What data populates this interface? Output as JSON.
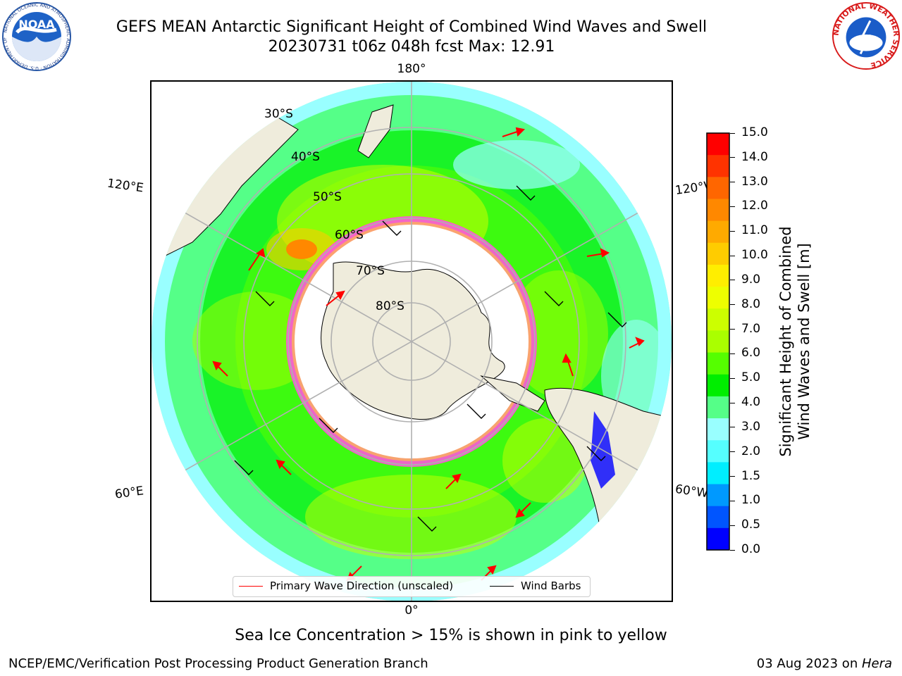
{
  "title": {
    "line1": "GEFS MEAN Antarctic Significant Height of Combined Wind Waves and Swell",
    "line2": "20230731 t06z 048h fcst   Max: 12.91"
  },
  "map": {
    "longitude_labels": {
      "top": "180°",
      "bottom": "0°",
      "upper_left": "120°E",
      "upper_right": "120°W",
      "lower_left": "60°E",
      "lower_right": "60°W"
    },
    "latitude_labels": [
      "30°S",
      "40°S",
      "50°S",
      "60°S",
      "70°S",
      "80°S"
    ],
    "colors": {
      "land": "#efecdc",
      "sea_ice": "#ffffff",
      "ice_edge": "#ff55dd",
      "wave_arrow": "#ff0000",
      "wind_barb": "#000000",
      "graticule": "#b0b0b0"
    },
    "legend": {
      "wave_direction": "Primary Wave Direction (unscaled)",
      "wind_barbs": "Wind Barbs"
    }
  },
  "colorbar": {
    "label_line1": "Significant Height of Combined",
    "label_line2": "Wind Waves and Swell [m]",
    "ticks": [
      "15.0",
      "14.0",
      "13.0",
      "12.0",
      "11.0",
      "10.0",
      "9.0",
      "8.0",
      "7.0",
      "6.0",
      "5.0",
      "4.0",
      "3.0",
      "2.0",
      "1.5",
      "1.0",
      "0.5",
      "0.0"
    ],
    "colors_top_to_bottom": [
      "#ff0000",
      "#ff3300",
      "#ff6600",
      "#ff8800",
      "#ffaa00",
      "#ffcc00",
      "#ffee00",
      "#eeff00",
      "#ccff00",
      "#aaff00",
      "#55ff00",
      "#00ee00",
      "#55ff88",
      "#99ffff",
      "#55ffff",
      "#00eeff",
      "#0099ff",
      "#0055ff",
      "#0000ff"
    ]
  },
  "note": "Sea Ice Concentration > 15% is shown in pink to yellow",
  "footer": {
    "left": "NCEP/EMC/Verification Post Processing Product Generation Branch",
    "right_date": "03 Aug 2023 on ",
    "right_host": "Hera"
  },
  "logos": {
    "left": "NOAA",
    "right": "NATIONAL WEATHER SERVICE"
  }
}
